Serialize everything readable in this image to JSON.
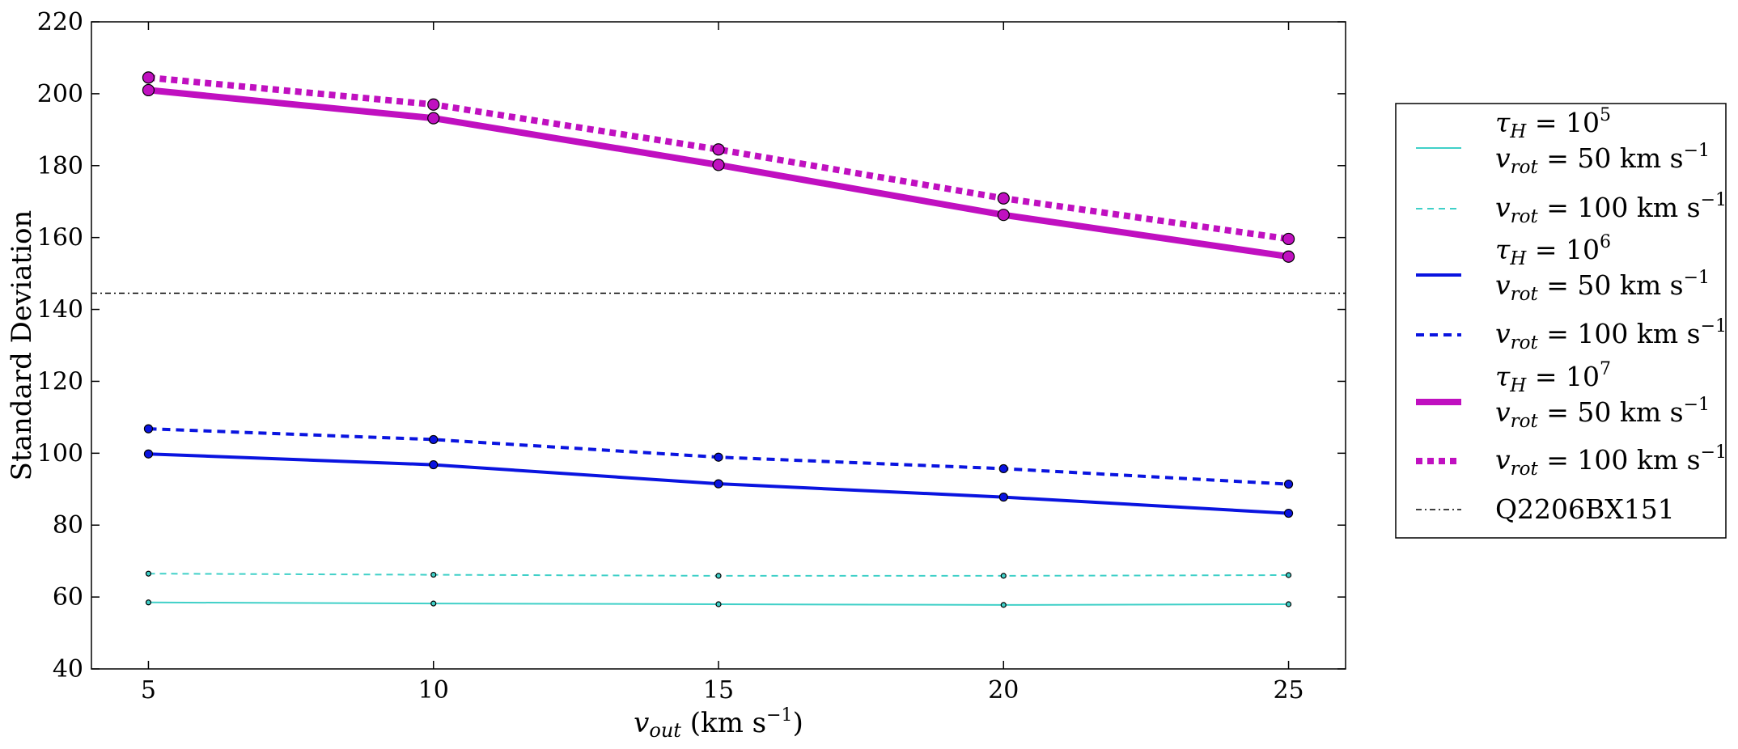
{
  "chart_data": {
    "type": "line",
    "xlabel": "v_out (km s⁻¹)",
    "ylabel": "Standard Deviation",
    "xlim": [
      4,
      26
    ],
    "ylim": [
      40,
      220
    ],
    "xticks": [
      5,
      10,
      15,
      20,
      25
    ],
    "yticks": [
      40,
      60,
      80,
      100,
      120,
      140,
      160,
      180,
      200,
      220
    ],
    "grid": false,
    "legend_placement": "outside-right",
    "x": [
      5,
      10,
      15,
      20,
      25
    ],
    "series": [
      {
        "key": "tau5_v50",
        "group_label": "τH = 10⁵",
        "name": "vrot = 50 km s⁻¹",
        "color": "#40d0c8",
        "style": "solid",
        "width": 2,
        "marker_r": 3,
        "values": [
          58.5,
          58.2,
          58.0,
          57.8,
          58.0
        ]
      },
      {
        "key": "tau5_v100",
        "name": "vrot = 100 km s⁻¹",
        "color": "#40d0c8",
        "style": "dashed",
        "width": 2,
        "marker_r": 3,
        "values": [
          66.5,
          66.2,
          65.9,
          65.9,
          66.1
        ]
      },
      {
        "key": "tau6_v50",
        "group_label": "τH = 10⁶",
        "name": "vrot = 50 km s⁻¹",
        "color": "#0a14e0",
        "style": "solid",
        "width": 4,
        "marker_r": 5,
        "values": [
          99.8,
          96.8,
          91.5,
          87.8,
          83.3
        ]
      },
      {
        "key": "tau6_v100",
        "name": "vrot = 100 km s⁻¹",
        "color": "#0a14e0",
        "style": "dashed",
        "width": 4,
        "marker_r": 5,
        "values": [
          106.8,
          103.8,
          98.9,
          95.7,
          91.4
        ]
      },
      {
        "key": "tau7_v50",
        "group_label": "τH = 10⁷",
        "name": "vrot = 50 km s⁻¹",
        "color": "#c010c0",
        "style": "solid",
        "width": 8,
        "marker_r": 7,
        "values": [
          201.0,
          193.2,
          180.2,
          166.3,
          154.7
        ]
      },
      {
        "key": "tau7_v100",
        "name": "vrot = 100 km s⁻¹",
        "color": "#c010c0",
        "style": "dotted",
        "width": 8,
        "marker_r": 7,
        "values": [
          204.5,
          197.0,
          184.5,
          170.9,
          159.6
        ]
      }
    ],
    "reference_line": {
      "name": "Q2206BX151",
      "y": 144.5,
      "color": "#000000",
      "style": "dashdot"
    }
  }
}
